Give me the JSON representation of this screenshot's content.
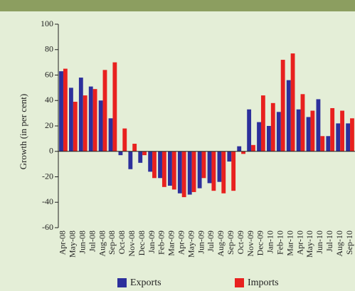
{
  "chart_data": {
    "type": "bar",
    "y_label": "Growth (in per cent)",
    "categories": [
      "Apr-08",
      "May-08",
      "Jun-08",
      "Jul-08",
      "Aug-08",
      "Sep-08",
      "Oct-08",
      "Nov-08",
      "Dec-08",
      "Jan-09",
      "Feb-09",
      "Mar-09",
      "Apr-09",
      "May-09",
      "Jun-09",
      "Jul-09",
      "Aug-09",
      "Sep-09",
      "Oct-09",
      "Nov-09",
      "Dec-09",
      "Jan-10",
      "Feb-10",
      "Mar-10",
      "Apr-10",
      "May-10",
      "Jun-10",
      "Jul-10",
      "Aug-10",
      "Sep-10"
    ],
    "series": [
      {
        "name": "Exports",
        "color": "#2c2f9c",
        "values": [
          63,
          50,
          58,
          51,
          40,
          26,
          -3,
          -14,
          -9,
          -16,
          -21,
          -27,
          -33,
          -34,
          -29,
          -25,
          -24,
          -8,
          4,
          33,
          23,
          20,
          31,
          56,
          33,
          27,
          41,
          12,
          22,
          22
        ]
      },
      {
        "name": "Imports",
        "color": "#e8211f",
        "values": [
          65,
          39,
          44,
          49,
          64,
          70,
          18,
          6,
          -3,
          -21,
          -28,
          -30,
          -36,
          -32,
          -21,
          -31,
          -33,
          -31,
          -2,
          5,
          44,
          38,
          72,
          77,
          45,
          32,
          12,
          34,
          32,
          26
        ]
      }
    ],
    "ylim": [
      -60,
      100
    ],
    "yticks": [
      -60,
      -40,
      -20,
      0,
      20,
      40,
      60,
      80,
      100
    ],
    "legend": "bottom"
  }
}
